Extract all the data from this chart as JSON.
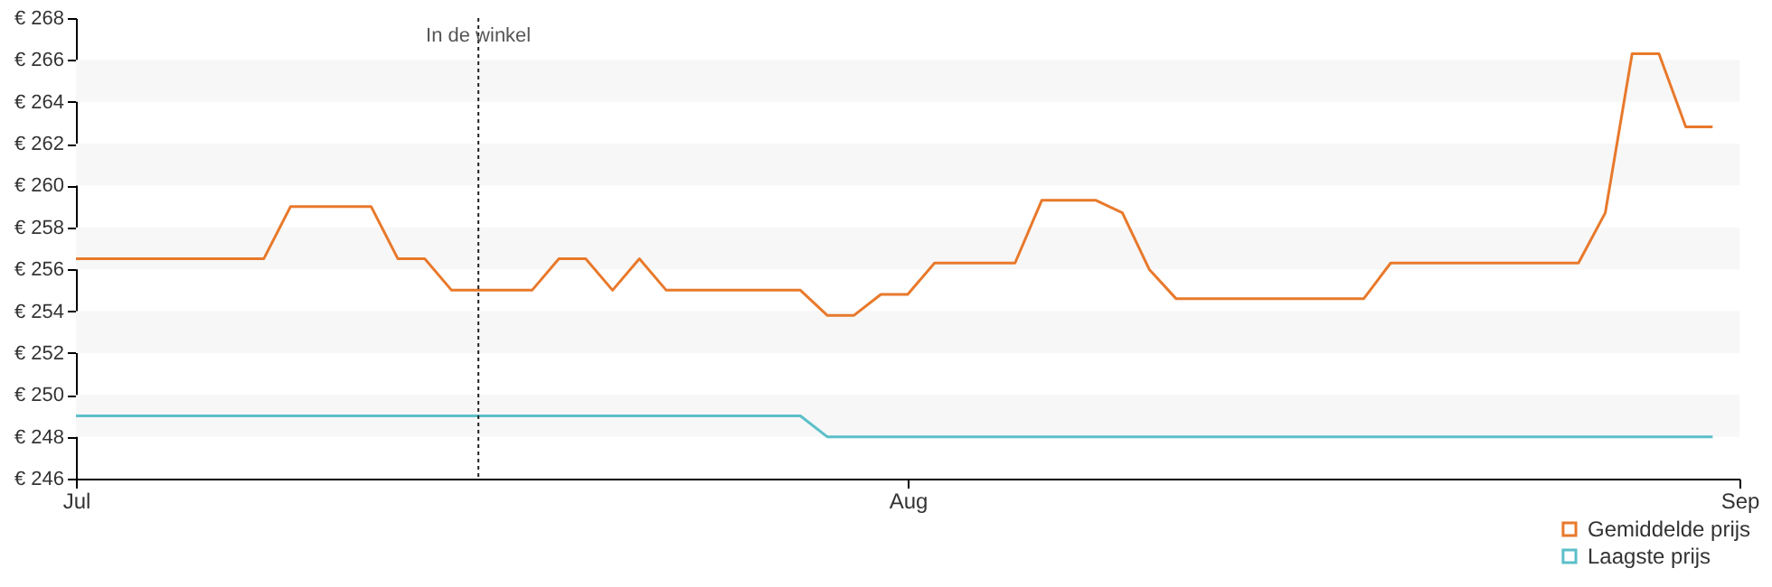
{
  "chart_data": {
    "type": "line",
    "x": [
      "--07-01",
      "--07-08",
      "--07-09",
      "--07-12",
      "--07-13",
      "--07-14",
      "--07-15",
      "--07-18",
      "--07-19",
      "--07-20",
      "--07-21",
      "--07-22",
      "--07-23",
      "--07-28",
      "--07-29",
      "--07-30",
      "--07-31",
      "--08-01",
      "--08-02",
      "--08-05",
      "--08-06",
      "--08-08",
      "--08-09",
      "--08-10",
      "--08-11",
      "--08-18",
      "--08-19",
      "--08-26",
      "--08-27",
      "--08-28",
      "--08-29",
      "--08-30",
      "--08-31"
    ],
    "series": [
      {
        "name": "Gemiddelde prijs",
        "color": "#e8792b",
        "values": [
          256.5,
          256.5,
          259,
          259,
          256.5,
          256.5,
          255,
          255,
          256.5,
          256.5,
          255,
          256.5,
          255,
          255,
          253.8,
          253.8,
          254.8,
          254.8,
          256.3,
          256.3,
          259.3,
          259.3,
          258.7,
          256,
          254.6,
          254.6,
          256.3,
          256.3,
          258.7,
          266.3,
          266.3,
          262.8,
          262.8
        ]
      },
      {
        "name": "Laagste prijs",
        "color": "#5bbfc9",
        "values": [
          249,
          249,
          249,
          249,
          249,
          249,
          249,
          249,
          249,
          249,
          249,
          249,
          249,
          249,
          248,
          248,
          248,
          248,
          248,
          248,
          248,
          248,
          248,
          248,
          248,
          248,
          248,
          248,
          248,
          248,
          248,
          248,
          248
        ]
      }
    ],
    "xlim": [
      "--07-01",
      "--09-01"
    ],
    "xticks": [
      {
        "value": "--07-01",
        "label": "Jul"
      },
      {
        "value": "--08-01",
        "label": "Aug"
      },
      {
        "value": "--09-01",
        "label": "Sep"
      }
    ],
    "ylim": [
      246,
      268
    ],
    "yticks": [
      {
        "value": 246,
        "label": "€ 246"
      },
      {
        "value": 248,
        "label": "€ 248"
      },
      {
        "value": 250,
        "label": "€ 250"
      },
      {
        "value": 252,
        "label": "€ 252"
      },
      {
        "value": 254,
        "label": "€ 254"
      },
      {
        "value": 256,
        "label": "€ 256"
      },
      {
        "value": 258,
        "label": "€ 258"
      },
      {
        "value": 260,
        "label": "€ 260"
      },
      {
        "value": 262,
        "label": "€ 262"
      },
      {
        "value": 264,
        "label": "€ 264"
      },
      {
        "value": 266,
        "label": "€ 266"
      },
      {
        "value": 268,
        "label": "€ 268"
      }
    ],
    "ref_lines": [
      {
        "axis": "x",
        "value": "--07-16",
        "label": "In de winkel",
        "line_style": "dotted"
      }
    ],
    "bands": [
      {
        "axis": "y",
        "from": 248,
        "to": 250,
        "color": "#f7f7f7"
      },
      {
        "axis": "y",
        "from": 252,
        "to": 254,
        "color": "#f7f7f7"
      },
      {
        "axis": "y",
        "from": 256,
        "to": 258,
        "color": "#f7f7f7"
      },
      {
        "axis": "y",
        "from": 260,
        "to": 262,
        "color": "#f7f7f7"
      },
      {
        "axis": "y",
        "from": 264,
        "to": 266,
        "color": "#f7f7f7"
      }
    ],
    "legend": "bottom right",
    "marker": "none",
    "line_style": "solid"
  }
}
